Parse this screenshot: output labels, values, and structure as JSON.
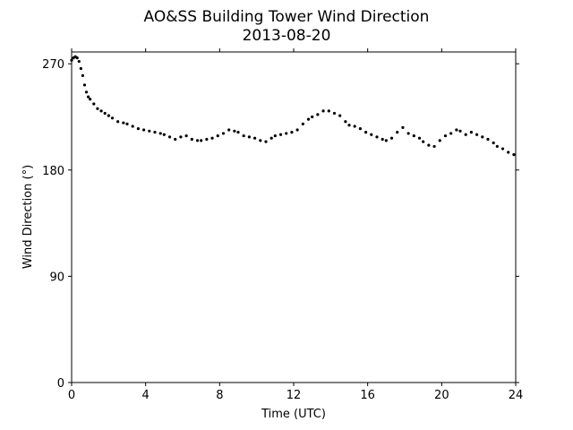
{
  "chart_data": {
    "type": "scatter",
    "title": "AO&SS Building Tower Wind Direction",
    "subtitle": "2013-08-20",
    "xlabel": "Time (UTC)",
    "ylabel": "Wind Direction (°)",
    "xlim": [
      0,
      24
    ],
    "ylim": [
      0,
      280
    ],
    "xticks": [
      0,
      4,
      8,
      12,
      16,
      20,
      24
    ],
    "yticks": [
      0,
      90,
      180,
      270
    ],
    "grid": false,
    "marker_color": "#000000",
    "series": [
      {
        "x": [
          0.0,
          0.1,
          0.2,
          0.3,
          0.4,
          0.5,
          0.6,
          0.7,
          0.8,
          0.9,
          1.0,
          1.2,
          1.4,
          1.6,
          1.8,
          2.0,
          2.2,
          2.5,
          2.8,
          3.0,
          3.3,
          3.6,
          3.9,
          4.2,
          4.5,
          4.8,
          5.0,
          5.3,
          5.6,
          5.9,
          6.2,
          6.5,
          6.8,
          7.0,
          7.3,
          7.6,
          7.9,
          8.2,
          8.5,
          8.8,
          9.0,
          9.3,
          9.6,
          9.9,
          10.2,
          10.5,
          10.8,
          11.0,
          11.3,
          11.6,
          11.9,
          12.2,
          12.5,
          12.8,
          13.0,
          13.3,
          13.6,
          13.9,
          14.2,
          14.5,
          14.8,
          15.0,
          15.3,
          15.6,
          15.9,
          16.2,
          16.5,
          16.8,
          17.0,
          17.3,
          17.6,
          17.9,
          18.2,
          18.5,
          18.8,
          19.0,
          19.3,
          19.6,
          19.9,
          20.2,
          20.5,
          20.8,
          21.0,
          21.3,
          21.6,
          21.9,
          22.2,
          22.5,
          22.8,
          23.0,
          23.3,
          23.6,
          23.9
        ],
        "y": [
          273,
          275,
          276,
          275,
          272,
          266,
          260,
          252,
          246,
          242,
          240,
          236,
          232,
          230,
          228,
          226,
          224,
          221,
          220,
          219,
          217,
          215,
          214,
          213,
          212,
          211,
          210,
          208,
          206,
          208,
          209,
          206,
          205,
          205,
          206,
          207,
          209,
          211,
          214,
          213,
          212,
          209,
          208,
          207,
          205,
          204,
          207,
          209,
          210,
          211,
          212,
          214,
          219,
          223,
          225,
          227,
          230,
          230,
          228,
          226,
          221,
          218,
          217,
          215,
          212,
          210,
          208,
          206,
          205,
          207,
          212,
          216,
          211,
          209,
          207,
          204,
          201,
          200,
          205,
          209,
          211,
          214,
          213,
          210,
          212,
          210,
          208,
          206,
          203,
          200,
          198,
          195,
          193
        ]
      }
    ]
  }
}
